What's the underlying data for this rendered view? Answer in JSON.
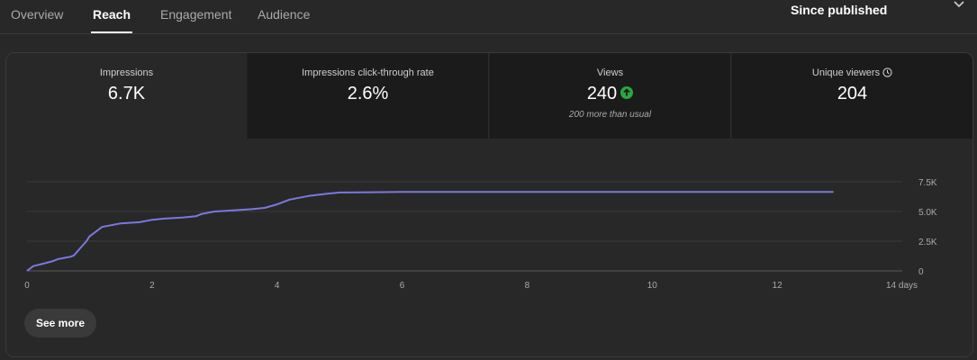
{
  "tabs": [
    {
      "label": "Overview"
    },
    {
      "label": "Reach"
    },
    {
      "label": "Engagement"
    },
    {
      "label": "Audience"
    }
  ],
  "period": {
    "label": "Since published",
    "icon": "chevron-down-icon"
  },
  "metrics": [
    {
      "label": "Impressions",
      "value": "6.7K"
    },
    {
      "label": "Impressions click-through rate",
      "value": "2.6%"
    },
    {
      "label": "Views",
      "value": "240",
      "note": "200 more than usual",
      "icon": "arrow-up-circle-icon"
    },
    {
      "label": "Unique viewers",
      "value": "204",
      "icon": "clock-icon"
    }
  ],
  "colors": {
    "line": "#7b78e0",
    "up": "#2ba640",
    "background": "#282828"
  },
  "see_more_label": "See more",
  "chart_data": {
    "type": "line",
    "x_tick_labels": [
      "0",
      "2",
      "4",
      "6",
      "8",
      "10",
      "12",
      "14 days"
    ],
    "y_tick_labels": [
      "0",
      "2.5K",
      "5.0K",
      "7.5K"
    ],
    "xlim": [
      0,
      14
    ],
    "ylim": [
      0,
      7500
    ],
    "grid": true,
    "series": [
      {
        "x": [
          0,
          0.1,
          0.25,
          0.4,
          0.5,
          0.6,
          0.7,
          0.75,
          0.85,
          0.95,
          1.0,
          1.1,
          1.2,
          1.3,
          1.5,
          1.8,
          2.0,
          2.2,
          2.5,
          2.7,
          2.8,
          3.0,
          3.3,
          3.6,
          3.8,
          4.0,
          4.2,
          4.5,
          4.8,
          5.0,
          5.5,
          6.0,
          7.0,
          8.0,
          10.0,
          12.0,
          12.9
        ],
        "y": [
          0,
          400,
          600,
          800,
          1000,
          1100,
          1200,
          1300,
          1900,
          2500,
          2900,
          3300,
          3700,
          3800,
          4000,
          4100,
          4300,
          4400,
          4500,
          4600,
          4800,
          5000,
          5100,
          5200,
          5300,
          5600,
          6000,
          6300,
          6500,
          6600,
          6620,
          6650,
          6650,
          6650,
          6650,
          6650,
          6650
        ]
      }
    ]
  }
}
